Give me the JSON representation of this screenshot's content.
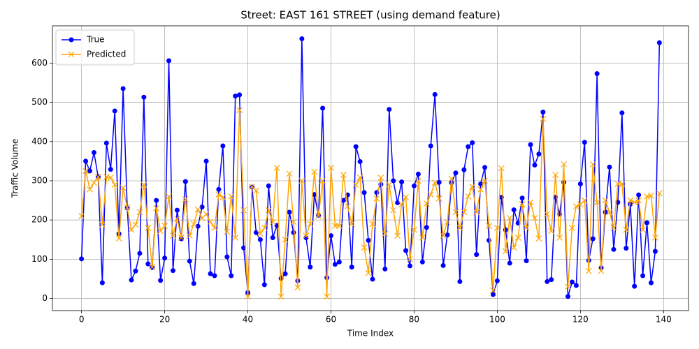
{
  "chart_data": {
    "type": "line",
    "title": "Street: EAST 161 STREET (using demand feature)",
    "x_label": "Time Index",
    "y_label": "Traffic Volume",
    "x": [
      0,
      1,
      2,
      3,
      4,
      5,
      6,
      7,
      8,
      9,
      10,
      11,
      12,
      13,
      14,
      15,
      16,
      17,
      18,
      19,
      20,
      21,
      22,
      23,
      24,
      25,
      26,
      27,
      28,
      29,
      30,
      31,
      32,
      33,
      34,
      35,
      36,
      37,
      38,
      39,
      40,
      41,
      42,
      43,
      44,
      45,
      46,
      47,
      48,
      49,
      50,
      51,
      52,
      53,
      54,
      55,
      56,
      57,
      58,
      59,
      60,
      61,
      62,
      63,
      64,
      65,
      66,
      67,
      68,
      69,
      70,
      71,
      72,
      73,
      74,
      75,
      76,
      77,
      78,
      79,
      80,
      81,
      82,
      83,
      84,
      85,
      86,
      87,
      88,
      89,
      90,
      91,
      92,
      93,
      94,
      95,
      96,
      97,
      98,
      99,
      100,
      101,
      102,
      103,
      104,
      105,
      106,
      107,
      108,
      109,
      110,
      111,
      112,
      113,
      114,
      115,
      116,
      117,
      118,
      119,
      120,
      121,
      122,
      123,
      124,
      125,
      126,
      127,
      128,
      129,
      130,
      131,
      132,
      133,
      134,
      135,
      136,
      137,
      138,
      139
    ],
    "series": [
      {
        "name": "True",
        "color": "#0000ff",
        "marker": "o",
        "values": [
          101,
          350,
          325,
          372,
          310,
          40,
          396,
          329,
          478,
          165,
          535,
          231,
          47,
          70,
          115,
          513,
          88,
          79,
          250,
          46,
          103,
          606,
          71,
          225,
          152,
          298,
          95,
          38,
          184,
          233,
          350,
          63,
          58,
          278,
          389,
          106,
          58,
          516,
          519,
          129,
          15,
          284,
          168,
          150,
          35,
          287,
          155,
          186,
          51,
          63,
          220,
          168,
          45,
          662,
          155,
          80,
          265,
          212,
          485,
          53,
          160,
          87,
          93,
          250,
          264,
          80,
          387,
          349,
          270,
          148,
          49,
          270,
          291,
          75,
          482,
          300,
          244,
          297,
          122,
          83,
          287,
          317,
          93,
          181,
          389,
          520,
          296,
          84,
          162,
          295,
          320,
          43,
          328,
          387,
          397,
          112,
          292,
          334,
          148,
          10,
          45,
          258,
          175,
          90,
          226,
          192,
          256,
          96,
          392,
          340,
          368,
          475,
          43,
          48,
          258,
          215,
          296,
          5,
          42,
          33,
          292,
          398,
          97,
          152,
          573,
          78,
          220,
          335,
          125,
          245,
          473,
          128,
          240,
          31,
          264,
          58,
          193,
          40,
          120,
          652
        ]
      },
      {
        "name": "Predicted",
        "color": "#ffa500",
        "marker": "x",
        "values": [
          210,
          325,
          278,
          295,
          310,
          188,
          310,
          308,
          290,
          153,
          282,
          232,
          175,
          188,
          220,
          290,
          180,
          80,
          230,
          172,
          185,
          260,
          160,
          203,
          155,
          253,
          160,
          190,
          227,
          205,
          215,
          195,
          180,
          265,
          258,
          170,
          260,
          155,
          480,
          225,
          5,
          285,
          275,
          165,
          180,
          225,
          195,
          333,
          5,
          150,
          318,
          195,
          28,
          300,
          160,
          190,
          323,
          210,
          300,
          5,
          333,
          185,
          185,
          315,
          235,
          190,
          290,
          308,
          130,
          65,
          190,
          255,
          308,
          165,
          290,
          225,
          160,
          240,
          258,
          100,
          175,
          300,
          155,
          242,
          265,
          295,
          255,
          160,
          195,
          305,
          220,
          180,
          220,
          260,
          285,
          220,
          278,
          300,
          185,
          20,
          180,
          332,
          120,
          205,
          130,
          155,
          240,
          180,
          245,
          205,
          153,
          458,
          215,
          172,
          315,
          155,
          342,
          30,
          180,
          235,
          240,
          250,
          70,
          342,
          245,
          70,
          250,
          220,
          180,
          292,
          292,
          175,
          250,
          245,
          250,
          175,
          260,
          262,
          155,
          268
        ]
      }
    ],
    "xlim": [
      -7,
      146
    ],
    "ylim": [
      -31,
      695
    ],
    "xticks": [
      0,
      20,
      40,
      60,
      80,
      100,
      120,
      140
    ],
    "yticks": [
      0,
      100,
      200,
      300,
      400,
      500,
      600
    ],
    "grid": true,
    "legend": "upper left"
  }
}
